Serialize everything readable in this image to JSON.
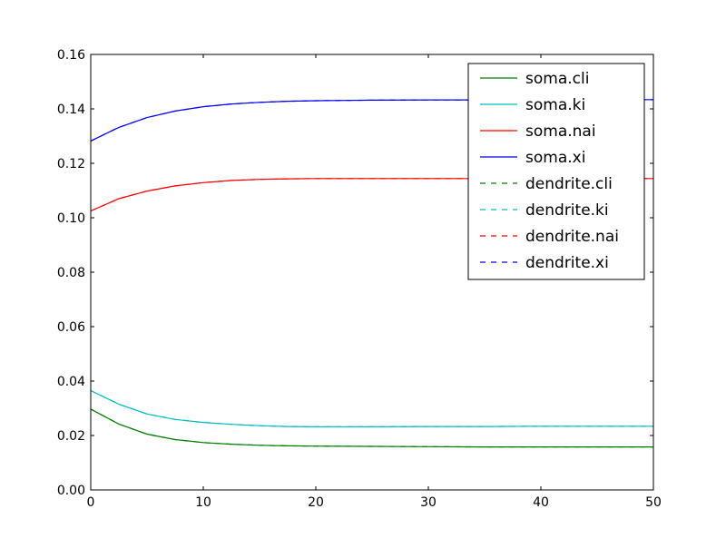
{
  "chart_data": {
    "type": "line",
    "title": "",
    "xlabel": "",
    "ylabel": "",
    "xlim": [
      0,
      50
    ],
    "ylim": [
      0,
      0.16
    ],
    "x_ticks": [
      0,
      10,
      20,
      30,
      40,
      50
    ],
    "x_tick_labels": [
      "0",
      "10",
      "20",
      "30",
      "40",
      "50"
    ],
    "y_ticks": [
      0,
      0.02,
      0.04,
      0.06,
      0.08,
      0.1,
      0.12,
      0.14,
      0.16
    ],
    "y_tick_labels": [
      "0.00",
      "0.02",
      "0.04",
      "0.06",
      "0.08",
      "0.10",
      "0.12",
      "0.14",
      "0.16"
    ],
    "grid": false,
    "legend_position": "top-right",
    "x": [
      0,
      2.5,
      5,
      7.5,
      10,
      12.5,
      15,
      17.5,
      20,
      25,
      30,
      35,
      40,
      45,
      50
    ],
    "series": [
      {
        "name": "soma.cli",
        "color": "#008000",
        "dash": "solid",
        "values": [
          0.0297,
          0.0242,
          0.0205,
          0.0185,
          0.0174,
          0.0168,
          0.0164,
          0.0162,
          0.0161,
          0.016,
          0.0159,
          0.0158,
          0.0158,
          0.0158,
          0.0158
        ]
      },
      {
        "name": "soma.ki",
        "color": "#00bfbf",
        "dash": "solid",
        "values": [
          0.0365,
          0.0315,
          0.0279,
          0.0259,
          0.0248,
          0.0241,
          0.0236,
          0.0233,
          0.0232,
          0.0232,
          0.0233,
          0.0233,
          0.0234,
          0.0234,
          0.0234
        ]
      },
      {
        "name": "soma.nai",
        "color": "#ff0000",
        "dash": "solid",
        "values": [
          0.1025,
          0.107,
          0.1098,
          0.1117,
          0.1129,
          0.1137,
          0.1141,
          0.1143,
          0.1144,
          0.1144,
          0.1144,
          0.1144,
          0.1144,
          0.1144,
          0.1144
        ]
      },
      {
        "name": "soma.xi",
        "color": "#0000ff",
        "dash": "solid",
        "values": [
          0.1282,
          0.1332,
          0.1368,
          0.1392,
          0.1408,
          0.1418,
          0.1424,
          0.1428,
          0.143,
          0.1432,
          0.1433,
          0.1433,
          0.1433,
          0.1433,
          0.1434
        ]
      },
      {
        "name": "dendrite.cli",
        "color": "#008000",
        "dash": "dashed",
        "values": [
          0.0297,
          0.0242,
          0.0205,
          0.0185,
          0.0174,
          0.0168,
          0.0164,
          0.0162,
          0.0161,
          0.016,
          0.0159,
          0.0158,
          0.0158,
          0.0158,
          0.0158
        ]
      },
      {
        "name": "dendrite.ki",
        "color": "#00bfbf",
        "dash": "dashed",
        "values": [
          0.0365,
          0.0315,
          0.0279,
          0.0259,
          0.0248,
          0.0241,
          0.0236,
          0.0233,
          0.0232,
          0.0232,
          0.0233,
          0.0233,
          0.0234,
          0.0234,
          0.0234
        ]
      },
      {
        "name": "dendrite.nai",
        "color": "#ff0000",
        "dash": "dashed",
        "values": [
          0.1025,
          0.107,
          0.1098,
          0.1117,
          0.1129,
          0.1137,
          0.1141,
          0.1143,
          0.1144,
          0.1144,
          0.1144,
          0.1144,
          0.1144,
          0.1144,
          0.1144
        ]
      },
      {
        "name": "dendrite.xi",
        "color": "#0000ff",
        "dash": "dashed",
        "values": [
          0.1282,
          0.1332,
          0.1368,
          0.1392,
          0.1408,
          0.1418,
          0.1424,
          0.1428,
          0.143,
          0.1432,
          0.1433,
          0.1433,
          0.1433,
          0.1433,
          0.1434
        ]
      }
    ]
  }
}
